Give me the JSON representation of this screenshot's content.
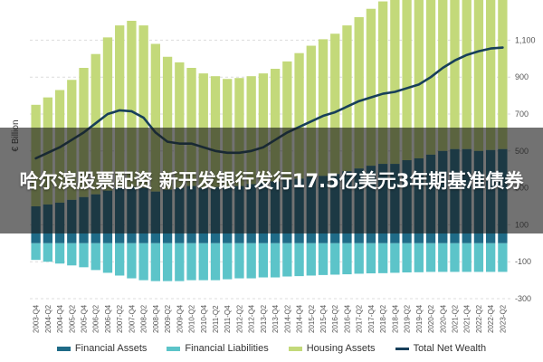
{
  "banner": {
    "title": "哈尔滨股票配资 新开发银行发行17.5亿美元3年期基准债券"
  },
  "chart_data": {
    "type": "bar",
    "ylabel": "€ Billion",
    "ylim": [
      -300,
      1200
    ],
    "yticks": [
      -300,
      -100,
      100,
      300,
      500,
      700,
      900,
      1100
    ],
    "ytick_labels": [
      "-300",
      "-100",
      "100",
      "300",
      "500",
      "700",
      "900",
      "1,100"
    ],
    "legend": {
      "placement": "bottom"
    },
    "grid": true,
    "x": [
      "2003-Q4",
      "2004-Q2",
      "2004-Q4",
      "2005-Q2",
      "2005-Q4",
      "2006-Q2",
      "2006-Q4",
      "2007-Q2",
      "2007-Q4",
      "2008-Q2",
      "2008-Q4",
      "2009-Q2",
      "2009-Q4",
      "2010-Q2",
      "2010-Q4",
      "2011-Q2",
      "2011-Q4",
      "2012-Q2",
      "2012-Q4",
      "2013-Q2",
      "2013-Q4",
      "2014-Q2",
      "2014-Q4",
      "2015-Q2",
      "2015-Q4",
      "2016-Q2",
      "2016-Q4",
      "2017-Q2",
      "2017-Q4",
      "2018-Q2",
      "2018-Q4",
      "2019-Q2",
      "2019-Q4",
      "2020-Q2",
      "2020-Q4",
      "2021-Q2",
      "2021-Q4",
      "2022-Q2",
      "2022-Q4",
      "2023-Q2"
    ],
    "series": [
      {
        "name": "Financial Assets",
        "kind": "bar",
        "color": "#1f6b87",
        "values": [
          200,
          210,
          220,
          235,
          250,
          265,
          285,
          300,
          305,
          300,
          280,
          290,
          300,
          310,
          300,
          305,
          300,
          310,
          320,
          330,
          335,
          345,
          350,
          360,
          365,
          375,
          390,
          405,
          420,
          430,
          430,
          450,
          460,
          480,
          500,
          510,
          510,
          500,
          505,
          510
        ]
      },
      {
        "name": "Financial Liabilities",
        "kind": "bar",
        "color": "#5cc4c9",
        "values": [
          -90,
          -100,
          -110,
          -120,
          -130,
          -145,
          -160,
          -175,
          -190,
          -200,
          -205,
          -205,
          -205,
          -200,
          -200,
          -200,
          -195,
          -190,
          -190,
          -185,
          -185,
          -180,
          -178,
          -175,
          -172,
          -170,
          -168,
          -165,
          -163,
          -162,
          -160,
          -158,
          -157,
          -155,
          -155,
          -155,
          -155,
          -155,
          -155,
          -155
        ]
      },
      {
        "name": "Housing Assets",
        "kind": "bar",
        "color": "#c3d97a",
        "values": [
          550,
          580,
          610,
          650,
          700,
          760,
          830,
          880,
          900,
          880,
          800,
          720,
          680,
          640,
          620,
          600,
          590,
          585,
          585,
          590,
          610,
          640,
          680,
          710,
          740,
          760,
          790,
          820,
          850,
          880,
          910,
          930,
          960,
          1000,
          1040,
          1080,
          1130,
          1170,
          1200,
          1200
        ]
      },
      {
        "name": "Total Net Wealth",
        "kind": "line",
        "color": "#173f5a",
        "values": [
          460,
          490,
          520,
          560,
          600,
          650,
          700,
          720,
          715,
          680,
          600,
          550,
          540,
          540,
          520,
          500,
          490,
          490,
          500,
          520,
          560,
          600,
          630,
          660,
          690,
          710,
          740,
          770,
          790,
          810,
          820,
          840,
          860,
          900,
          950,
          990,
          1020,
          1040,
          1055,
          1060
        ]
      }
    ]
  }
}
